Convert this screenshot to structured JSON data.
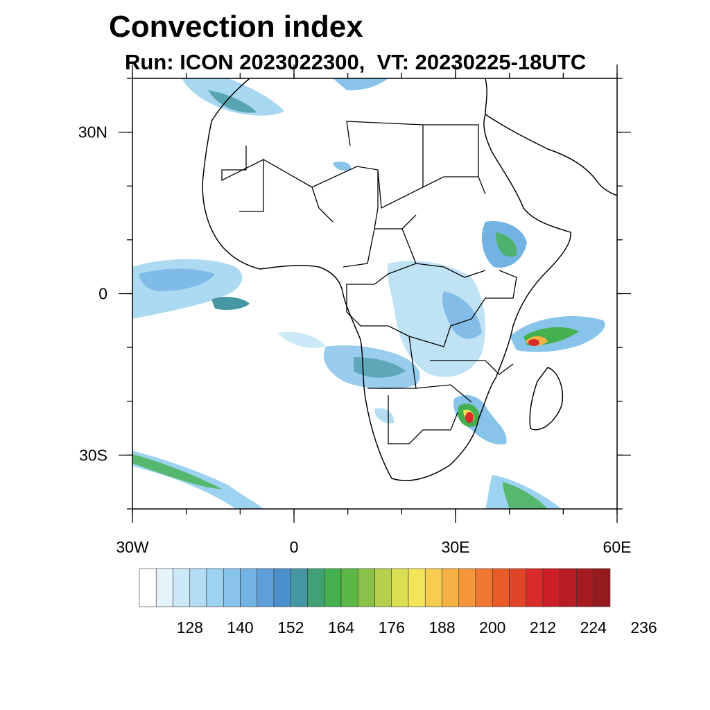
{
  "title": "Convection index",
  "subtitle": "Run: ICON 2023022300,  VT: 20230225-18UTC",
  "map": {
    "lon_range": [
      -30,
      60
    ],
    "lat_range": [
      -40,
      40
    ],
    "y_ticks": [
      {
        "lat": 30,
        "label": "30N"
      },
      {
        "lat": 0,
        "label": "0"
      },
      {
        "lat": -30,
        "label": "30S"
      }
    ],
    "x_ticks": [
      {
        "lon": -30,
        "label": "30W"
      },
      {
        "lon": 0,
        "label": "0"
      },
      {
        "lon": 30,
        "label": "30E"
      },
      {
        "lon": 60,
        "label": "60E"
      }
    ]
  },
  "colorbar": {
    "colors": [
      "#ffffff",
      "#e5f4fb",
      "#cce9f7",
      "#b4ddf3",
      "#9dd3f0",
      "#88c4ea",
      "#73b3e3",
      "#5f9fd9",
      "#4b90cc",
      "#4598a3",
      "#41a174",
      "#45b04f",
      "#5cb846",
      "#8ac249",
      "#b5cf4f",
      "#dbe052",
      "#f3e55a",
      "#f7cc4f",
      "#f6b244",
      "#f5963b",
      "#f17832",
      "#ea5b2a",
      "#e24428",
      "#d92c2a",
      "#cc2028",
      "#b81c25",
      "#a61b22",
      "#941a1e"
    ],
    "labels": [
      "128",
      "140",
      "152",
      "164",
      "176",
      "188",
      "200",
      "212",
      "224",
      "236"
    ]
  }
}
